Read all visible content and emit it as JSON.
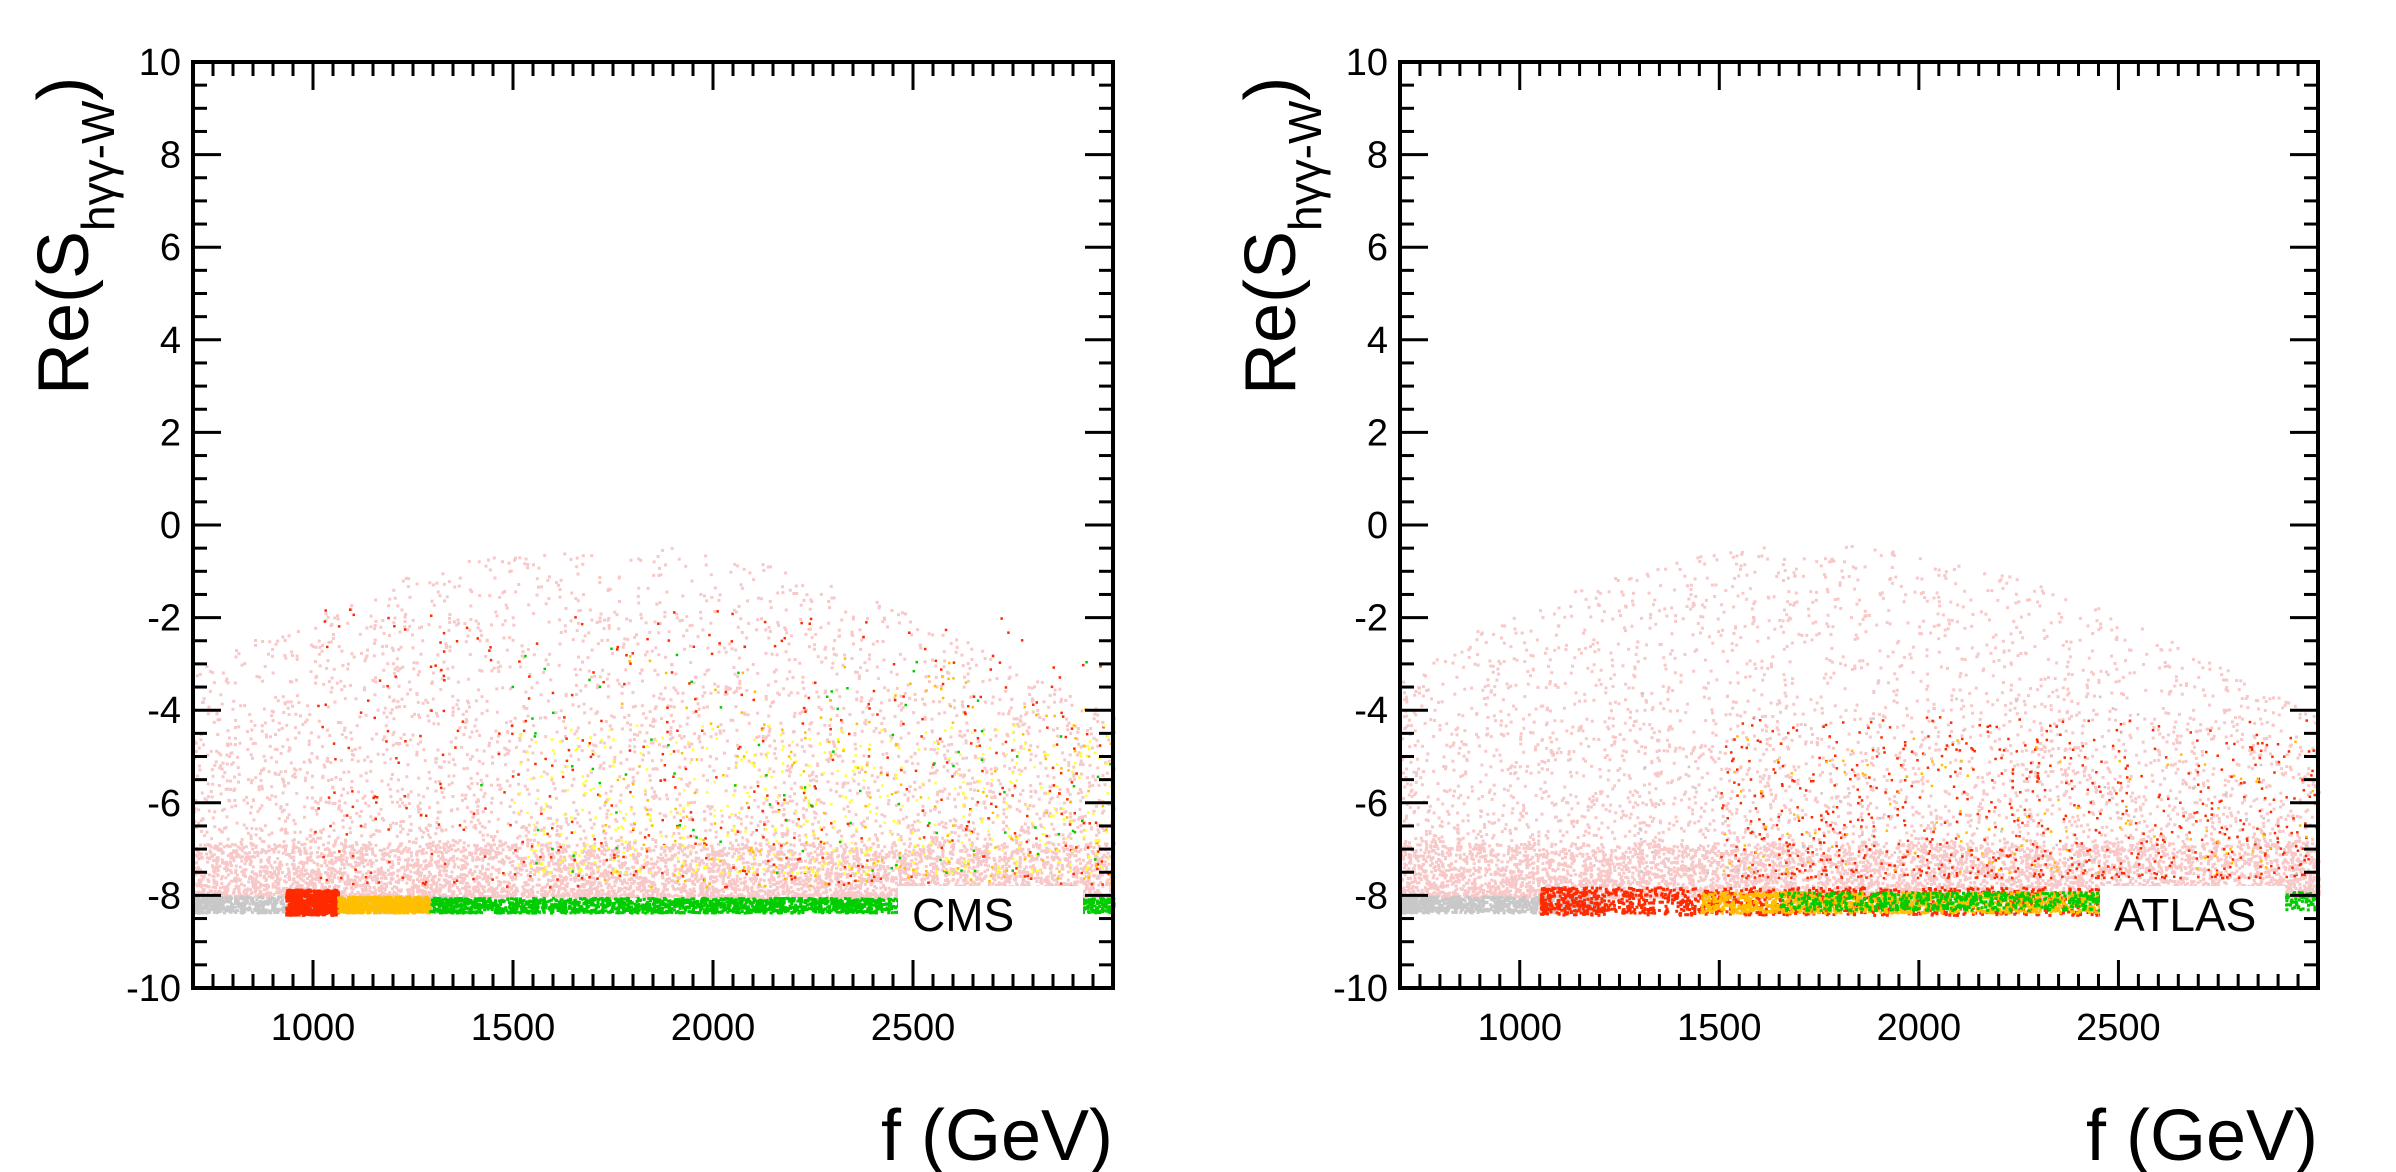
{
  "chart_data": [
    {
      "type": "scatter",
      "panel_label": "CMS",
      "xlabel": "f (GeV)",
      "ylabel": "Re(S_{hγγ-W})",
      "ylabel_main": "Re(S",
      "ylabel_sub": "hγγ-W",
      "ylabel_close": ")",
      "xlim": [
        700,
        3000
      ],
      "ylim": [
        -10,
        10
      ],
      "xticks": [
        1000,
        1500,
        2000,
        2500
      ],
      "yticks": [
        -10,
        -8,
        -6,
        -4,
        -2,
        0,
        2,
        4,
        6,
        8,
        10
      ],
      "xtick_labels": [
        "1000",
        "1500",
        "2000",
        "2500"
      ],
      "ytick_labels": [
        "-10",
        "-8",
        "-6",
        "-4",
        "-2",
        "0",
        "2",
        "4",
        "6",
        "8",
        "10"
      ],
      "grid": false,
      "legend": "none",
      "colors": {
        "gray": "#c8c8c8",
        "pink": "#f8c8c8",
        "red": "#ff2a00",
        "orange": "#ffbf00",
        "yellow": "#ffff33",
        "green": "#00cc00"
      },
      "series": [
        {
          "color": "gray",
          "note_points": [
            [
              750,
              -8.1
            ],
            [
              900,
              -8.15
            ],
            [
              1000,
              -8.2
            ],
            [
              1300,
              -8.2
            ],
            [
              2000,
              -8.25
            ]
          ]
        },
        {
          "color": "pink",
          "note_points": [
            [
              850,
              -7.0
            ],
            [
              1000,
              -6.5
            ],
            [
              1500,
              -7.5
            ],
            [
              2000,
              -7.2
            ],
            [
              2500,
              -6.8
            ],
            [
              2900,
              -7.5
            ]
          ]
        },
        {
          "color": "red",
          "band_x": [
            930,
            1060
          ],
          "band_y": [
            -8.4,
            -7.9
          ]
        },
        {
          "color": "orange",
          "band_x": [
            1060,
            1290
          ],
          "band_y": [
            -8.4,
            -8.0
          ]
        },
        {
          "color": "green",
          "band_x": [
            1290,
            3000
          ],
          "band_y": [
            -8.4,
            -8.05
          ]
        }
      ]
    },
    {
      "type": "scatter",
      "panel_label": "ATLAS",
      "xlabel": "f (GeV)",
      "ylabel": "Re(S_{hγγ-W})",
      "ylabel_main": "Re(S",
      "ylabel_sub": "hγγ-W",
      "ylabel_close": ")",
      "xlim": [
        700,
        3000
      ],
      "ylim": [
        -10,
        10
      ],
      "xticks": [
        1000,
        1500,
        2000,
        2500
      ],
      "yticks": [
        -10,
        -8,
        -6,
        -4,
        -2,
        0,
        2,
        4,
        6,
        8,
        10
      ],
      "xtick_labels": [
        "1000",
        "1500",
        "2000",
        "2500"
      ],
      "ytick_labels": [
        "-10",
        "-8",
        "-6",
        "-4",
        "-2",
        "0",
        "2",
        "4",
        "6",
        "8",
        "10"
      ],
      "grid": false,
      "legend": "none",
      "colors": {
        "gray": "#c8c8c8",
        "pink": "#f8c8c8",
        "red": "#ff2a00",
        "orange": "#ffbf00",
        "yellow": "#ffff33",
        "green": "#00cc00"
      },
      "series": [
        {
          "color": "gray",
          "note_points": [
            [
              750,
              -8.1
            ],
            [
              900,
              -8.15
            ],
            [
              1000,
              -8.2
            ]
          ]
        },
        {
          "color": "pink",
          "note_points": [
            [
              850,
              -7.0
            ],
            [
              1000,
              -6.5
            ],
            [
              1500,
              -7.5
            ],
            [
              2000,
              -7.2
            ],
            [
              2500,
              -6.8
            ],
            [
              2900,
              -7.5
            ]
          ]
        },
        {
          "color": "red",
          "band_x": [
            1050,
            1600
          ],
          "band_y": [
            -8.4,
            -7.8
          ]
        },
        {
          "color": "orange",
          "band_x": [
            1500,
            2500
          ],
          "band_y": [
            -8.4,
            -7.9
          ]
        },
        {
          "color": "green",
          "band_x": [
            1600,
            3000
          ],
          "band_y": [
            -8.4,
            -7.9
          ]
        }
      ]
    }
  ]
}
